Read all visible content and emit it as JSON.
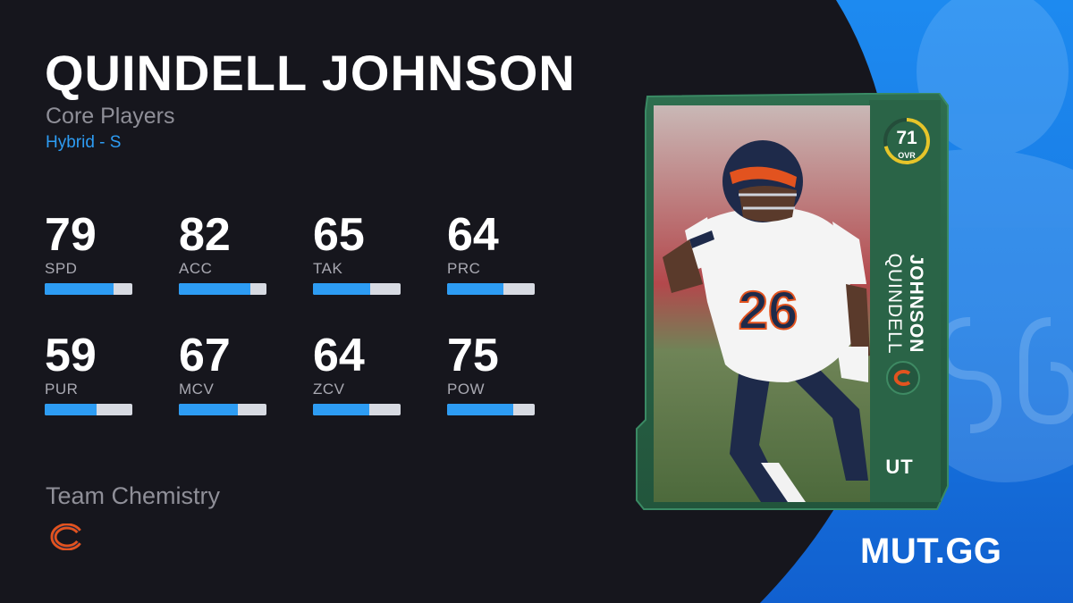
{
  "player": {
    "name": "QUINDELL JOHNSON",
    "first_name": "QUINDELL",
    "last_name": "JOHNSON",
    "program": "Core Players",
    "archetype": "Hybrid - S"
  },
  "stats": [
    {
      "value": "79",
      "label": "SPD",
      "pct": 0.79
    },
    {
      "value": "82",
      "label": "ACC",
      "pct": 0.82
    },
    {
      "value": "65",
      "label": "TAK",
      "pct": 0.65
    },
    {
      "value": "64",
      "label": "PRC",
      "pct": 0.64
    },
    {
      "value": "59",
      "label": "PUR",
      "pct": 0.59
    },
    {
      "value": "67",
      "label": "MCV",
      "pct": 0.67
    },
    {
      "value": "64",
      "label": "ZCV",
      "pct": 0.64
    },
    {
      "value": "75",
      "label": "POW",
      "pct": 0.75
    }
  ],
  "chemistry": {
    "label": "Team Chemistry",
    "team_icon": "bears-c-logo-icon"
  },
  "card": {
    "ovr": "71",
    "ovr_label": "OVR",
    "ovr_fraction": 0.71,
    "mode": "UT",
    "jersey_number": "26",
    "team_icon": "bears-c-logo-icon"
  },
  "brand": "MUT.GG",
  "colors": {
    "background": "#16161d",
    "accent_blue": "#2d9cf3",
    "panel_blue": "#1b7fe6",
    "card_green": "#2f6b4d",
    "bears_orange": "#e2531f",
    "ovr_ring": "#e6c52a"
  }
}
